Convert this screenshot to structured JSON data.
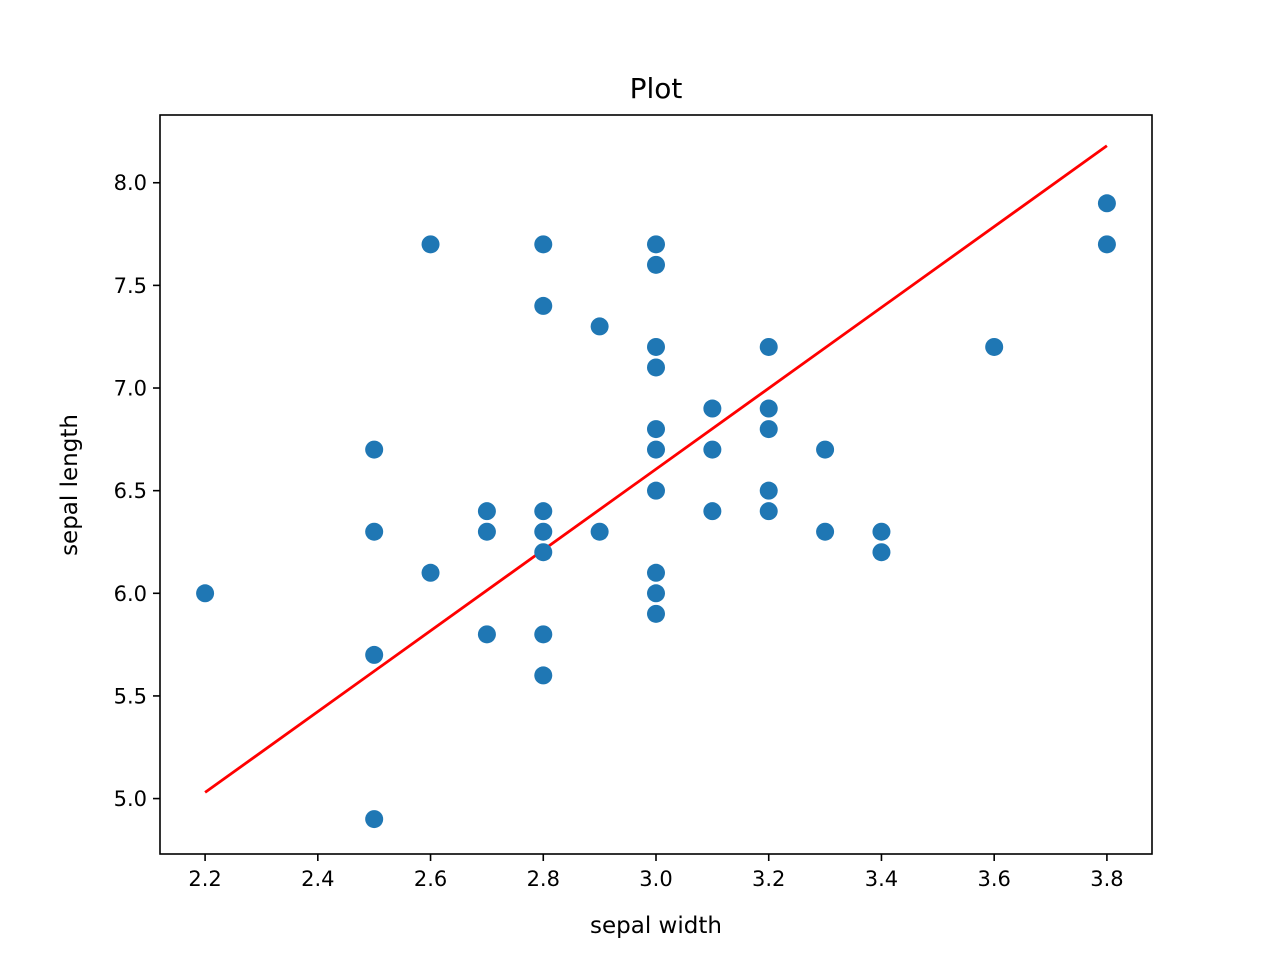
{
  "chart_data": {
    "type": "scatter",
    "title": "Plot",
    "xlabel": "sepal width",
    "ylabel": "sepal length",
    "xlim": [
      2.12,
      3.88
    ],
    "ylim": [
      4.73,
      8.33
    ],
    "xticks": [
      "2.2",
      "2.4",
      "2.6",
      "2.8",
      "3.0",
      "3.2",
      "3.4",
      "3.6",
      "3.8"
    ],
    "yticks": [
      "5.0",
      "5.5",
      "6.0",
      "6.5",
      "7.0",
      "7.5",
      "8.0"
    ],
    "grid": false,
    "points": [
      [
        2.2,
        6.0
      ],
      [
        2.5,
        6.7
      ],
      [
        2.5,
        6.3
      ],
      [
        2.5,
        5.7
      ],
      [
        2.5,
        4.9
      ],
      [
        2.6,
        7.7
      ],
      [
        2.6,
        6.1
      ],
      [
        2.7,
        6.4
      ],
      [
        2.7,
        6.3
      ],
      [
        2.7,
        5.8
      ],
      [
        2.8,
        7.7
      ],
      [
        2.8,
        7.4
      ],
      [
        2.8,
        6.4
      ],
      [
        2.8,
        6.3
      ],
      [
        2.8,
        6.2
      ],
      [
        2.8,
        5.8
      ],
      [
        2.8,
        5.6
      ],
      [
        2.9,
        7.3
      ],
      [
        2.9,
        6.3
      ],
      [
        3.0,
        7.7
      ],
      [
        3.0,
        7.6
      ],
      [
        3.0,
        7.2
      ],
      [
        3.0,
        7.1
      ],
      [
        3.0,
        6.8
      ],
      [
        3.0,
        6.7
      ],
      [
        3.0,
        6.5
      ],
      [
        3.0,
        6.1
      ],
      [
        3.0,
        6.0
      ],
      [
        3.0,
        5.9
      ],
      [
        3.1,
        6.9
      ],
      [
        3.1,
        6.7
      ],
      [
        3.1,
        6.4
      ],
      [
        3.2,
        7.2
      ],
      [
        3.2,
        6.9
      ],
      [
        3.2,
        6.8
      ],
      [
        3.2,
        6.5
      ],
      [
        3.2,
        6.4
      ],
      [
        3.3,
        6.7
      ],
      [
        3.3,
        6.3
      ],
      [
        3.4,
        6.3
      ],
      [
        3.4,
        6.2
      ],
      [
        3.6,
        7.2
      ],
      [
        3.8,
        7.9
      ],
      [
        3.8,
        7.7
      ]
    ],
    "fit_line": [
      [
        2.2,
        5.03
      ],
      [
        3.8,
        8.18
      ]
    ],
    "point_color": "#1f77b4",
    "line_color": "#ff0000"
  }
}
